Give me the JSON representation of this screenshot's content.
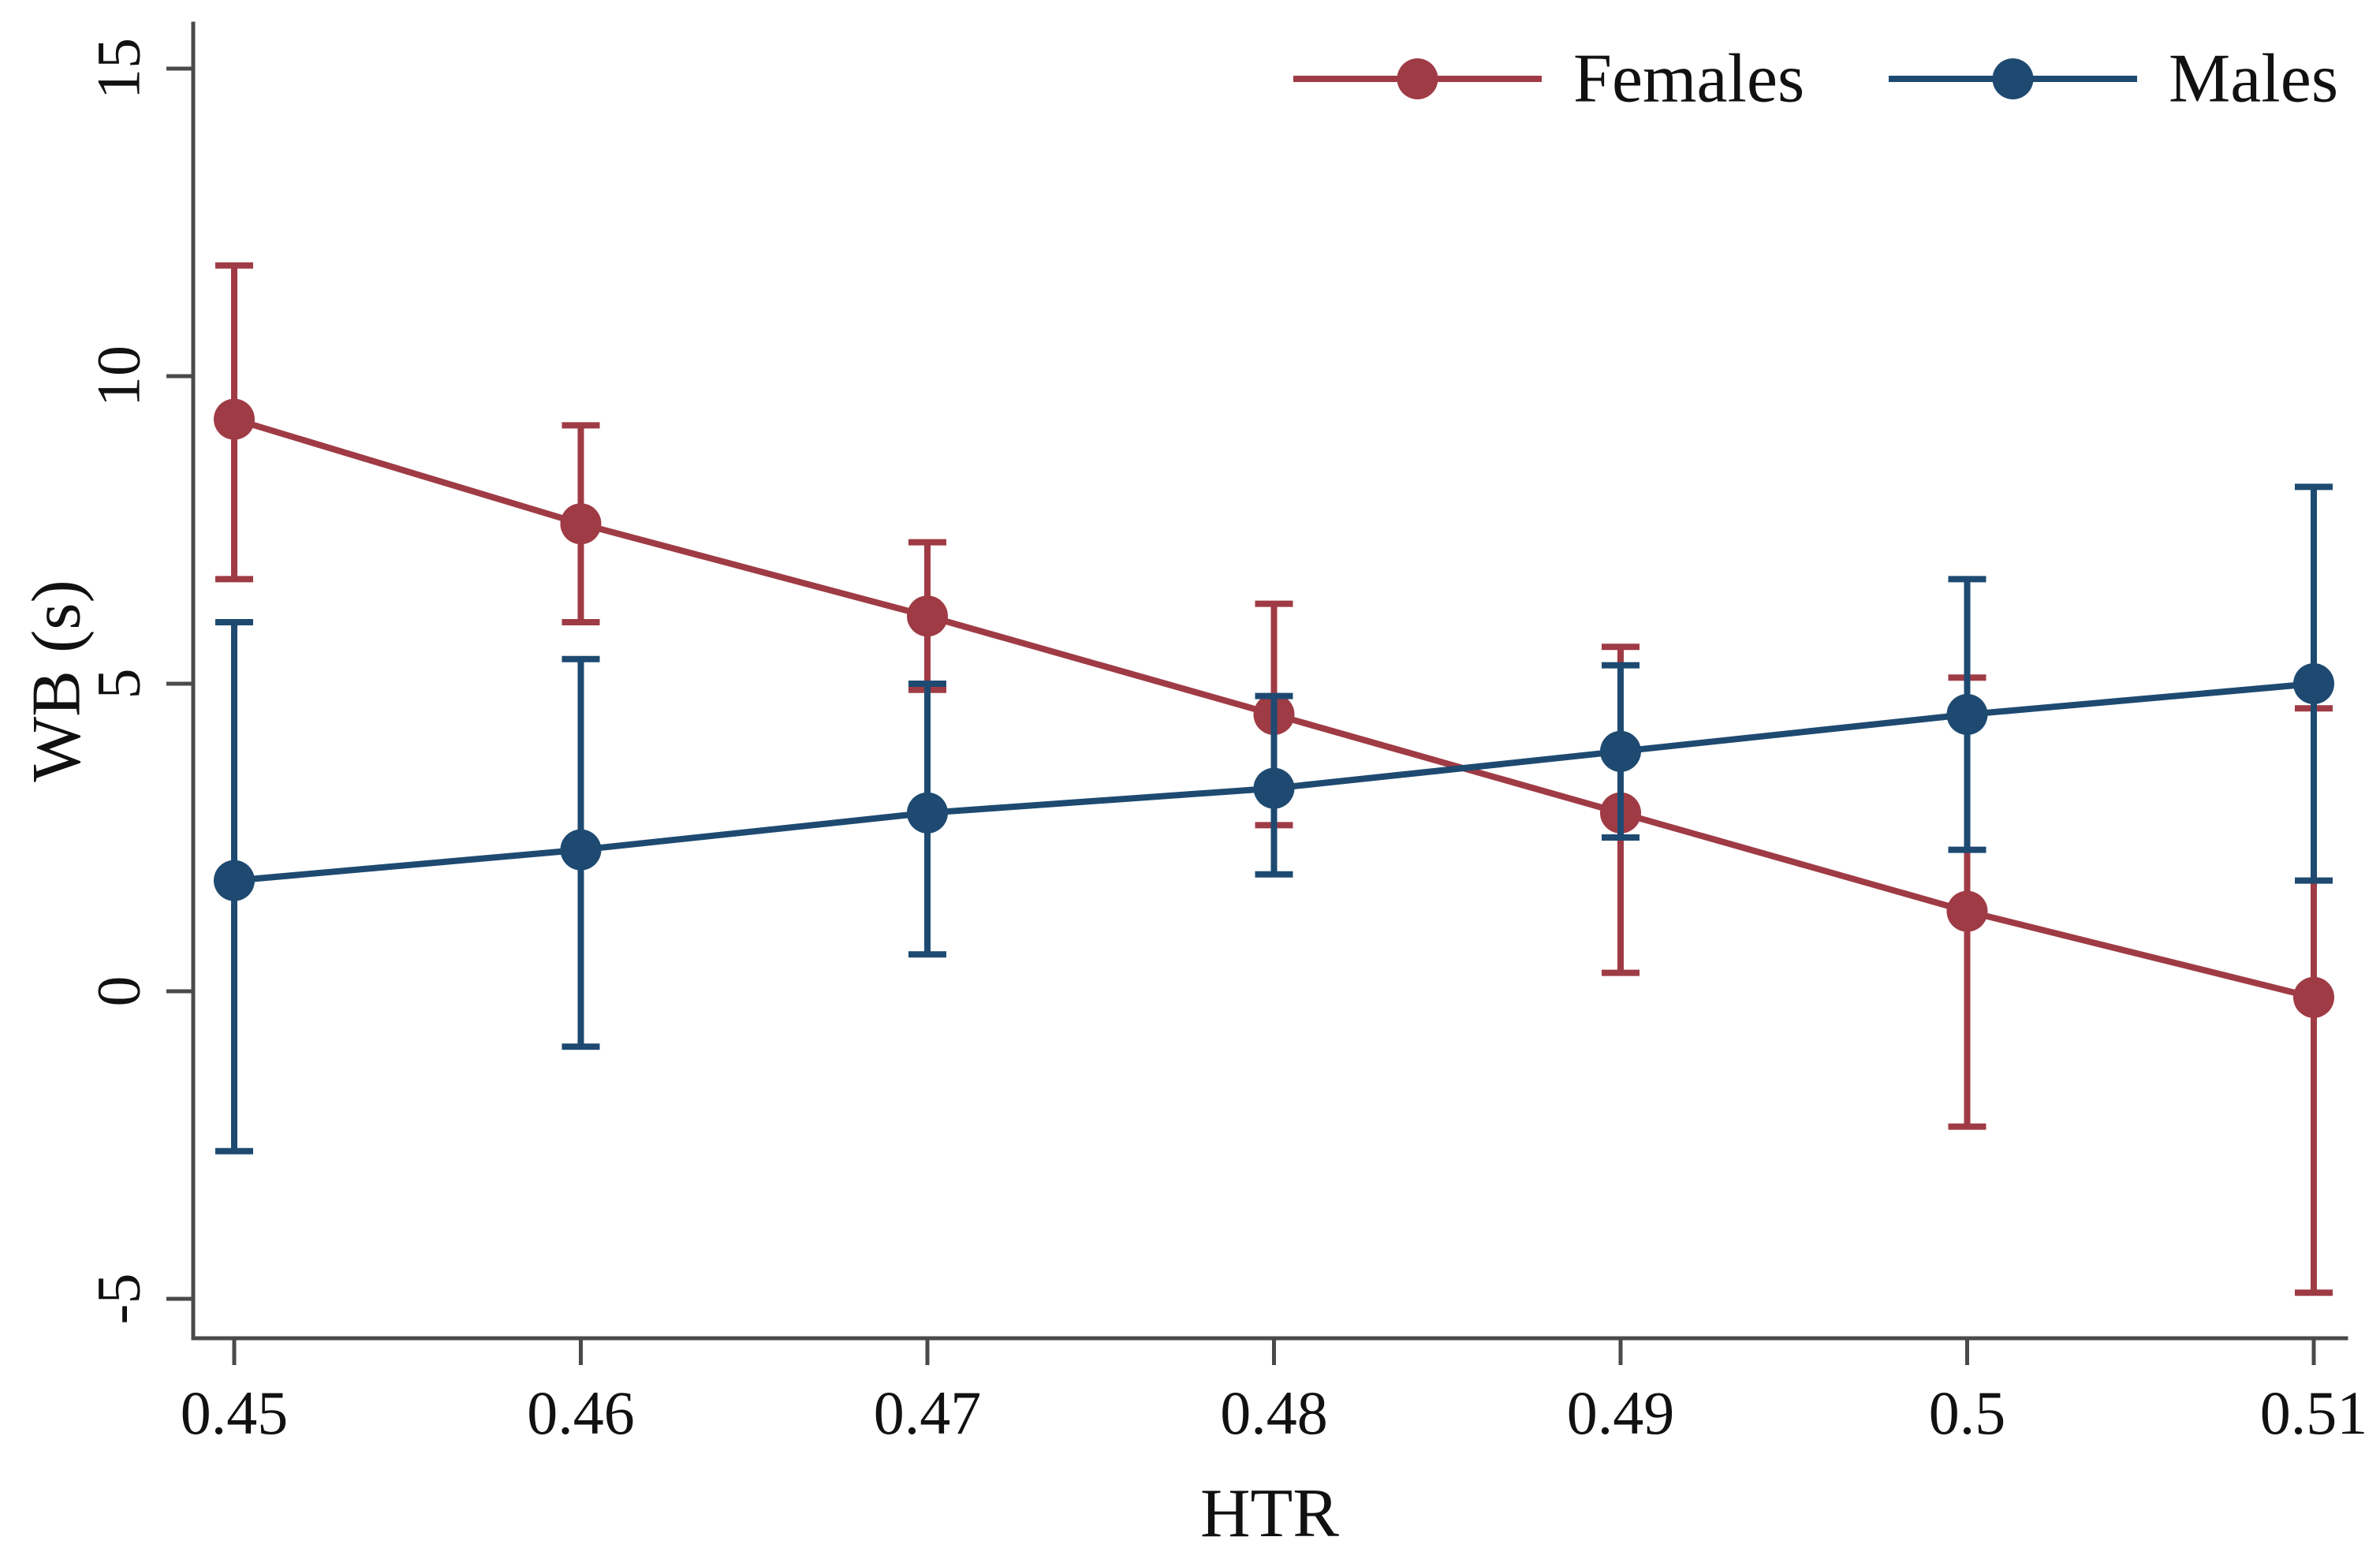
{
  "figure": {
    "background": "#ffffff",
    "axis_color": "#4a4a4a",
    "text_color": "#111111"
  },
  "chart_data": {
    "type": "line",
    "title": "",
    "xlabel": "HTR",
    "ylabel": "WB (s)",
    "grid": false,
    "legend_position": "top-right",
    "x": [
      0.45,
      0.46,
      0.47,
      0.48,
      0.49,
      0.5,
      0.51
    ],
    "x_tick_labels": [
      "0.45",
      "0.46",
      "0.47",
      "0.48",
      "0.49",
      "0.5",
      "0.51"
    ],
    "y_ticks": [
      -5,
      0,
      5,
      10,
      15
    ],
    "y_tick_labels": [
      "-5",
      "0",
      "5",
      "10",
      "15"
    ],
    "xlim": [
      0.4488,
      0.5109
    ],
    "ylim": [
      -5.6,
      15.7
    ],
    "series": [
      {
        "name": "Females",
        "color": "#9F3B45",
        "marker": "circle",
        "values": [
          9.3,
          7.6,
          6.1,
          4.5,
          2.9,
          1.3,
          -0.1
        ],
        "ci_low": [
          6.7,
          6.0,
          4.9,
          2.7,
          0.3,
          -2.2,
          -4.9
        ],
        "ci_high": [
          11.8,
          9.2,
          7.3,
          6.3,
          5.6,
          5.1,
          4.6
        ]
      },
      {
        "name": "Males",
        "color": "#1E4A71",
        "marker": "circle",
        "values": [
          1.8,
          2.3,
          2.9,
          3.3,
          3.9,
          4.5,
          5.0
        ],
        "ci_low": [
          -2.6,
          -0.9,
          0.6,
          1.9,
          2.5,
          2.3,
          1.8
        ],
        "ci_high": [
          6.0,
          5.4,
          5.0,
          4.8,
          5.3,
          6.7,
          8.2
        ]
      }
    ]
  }
}
